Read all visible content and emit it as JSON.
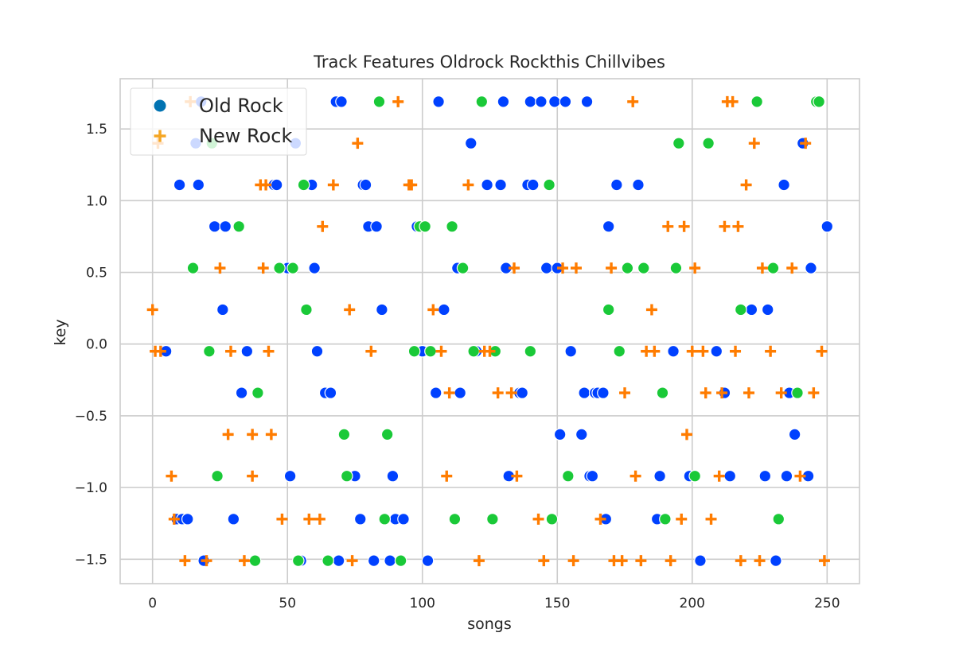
{
  "chart_data": {
    "type": "scatter",
    "title": "Track Features Oldrock Rockthis Chillvibes",
    "xlabel": "songs",
    "ylabel": "key",
    "xlim": [
      -12,
      262
    ],
    "ylim": [
      -1.67,
      1.85
    ],
    "xticks": [
      0,
      50,
      100,
      150,
      200,
      250
    ],
    "yticks": [
      -1.5,
      -1.0,
      -0.5,
      0.0,
      0.5,
      1.0,
      1.5
    ],
    "xtick_labels": [
      "0",
      "50",
      "100",
      "150",
      "200",
      "250"
    ],
    "ytick_labels": [
      "−1.5",
      "−1.0",
      "−0.5",
      "0.0",
      "0.5",
      "1.0",
      "1.5"
    ],
    "grid": true,
    "legend_position": "top-left",
    "legend": [
      {
        "name": "Old Rock",
        "marker": "circle",
        "color": "#0173b2"
      },
      {
        "name": "New Rock",
        "marker": "plus",
        "color": "#f5a623"
      }
    ],
    "series": [
      {
        "name": "Old Rock",
        "marker": "circle",
        "color": "#0041ff",
        "points": [
          [
            5,
            -0.05
          ],
          [
            10,
            1.11
          ],
          [
            9,
            -1.22
          ],
          [
            11,
            -1.22
          ],
          [
            13,
            -1.22
          ],
          [
            16,
            1.4
          ],
          [
            17,
            1.11
          ],
          [
            18,
            1.69
          ],
          [
            19,
            -1.51
          ],
          [
            23,
            0.82
          ],
          [
            26,
            0.24
          ],
          [
            27,
            0.82
          ],
          [
            30,
            -1.22
          ],
          [
            33,
            -0.34
          ],
          [
            35,
            -0.05
          ],
          [
            45,
            1.11
          ],
          [
            46,
            1.11
          ],
          [
            50,
            0.53
          ],
          [
            51,
            -0.92
          ],
          [
            53,
            1.4
          ],
          [
            55,
            -1.51
          ],
          [
            59,
            1.11
          ],
          [
            60,
            0.53
          ],
          [
            61,
            -0.05
          ],
          [
            64,
            -0.34
          ],
          [
            66,
            -0.34
          ],
          [
            68,
            1.69
          ],
          [
            69,
            -1.51
          ],
          [
            70,
            1.69
          ],
          [
            75,
            -0.92
          ],
          [
            77,
            -1.22
          ],
          [
            78,
            1.11
          ],
          [
            79,
            1.11
          ],
          [
            80,
            0.82
          ],
          [
            82,
            -1.51
          ],
          [
            83,
            0.82
          ],
          [
            85,
            0.24
          ],
          [
            88,
            -1.51
          ],
          [
            89,
            -0.92
          ],
          [
            90,
            -1.22
          ],
          [
            93,
            -1.22
          ],
          [
            98,
            0.82
          ],
          [
            100,
            -0.05
          ],
          [
            102,
            -1.51
          ],
          [
            105,
            -0.34
          ],
          [
            106,
            1.69
          ],
          [
            108,
            0.24
          ],
          [
            113,
            0.53
          ],
          [
            114,
            -0.34
          ],
          [
            118,
            1.4
          ],
          [
            120,
            -0.05
          ],
          [
            124,
            1.11
          ],
          [
            129,
            1.11
          ],
          [
            130,
            1.69
          ],
          [
            131,
            0.53
          ],
          [
            132,
            -0.92
          ],
          [
            136,
            -0.34
          ],
          [
            137,
            -0.34
          ],
          [
            139,
            1.11
          ],
          [
            140,
            1.69
          ],
          [
            141,
            1.11
          ],
          [
            144,
            1.69
          ],
          [
            146,
            0.53
          ],
          [
            149,
            1.69
          ],
          [
            150,
            0.53
          ],
          [
            151,
            -0.63
          ],
          [
            153,
            1.69
          ],
          [
            155,
            -0.05
          ],
          [
            159,
            -0.63
          ],
          [
            160,
            -0.34
          ],
          [
            161,
            1.69
          ],
          [
            162,
            -0.92
          ],
          [
            163,
            -0.92
          ],
          [
            164,
            -0.34
          ],
          [
            165,
            -0.34
          ],
          [
            167,
            -0.34
          ],
          [
            168,
            -1.22
          ],
          [
            169,
            0.82
          ],
          [
            172,
            1.11
          ],
          [
            180,
            1.11
          ],
          [
            187,
            -1.22
          ],
          [
            188,
            -0.92
          ],
          [
            193,
            -0.05
          ],
          [
            199,
            -0.92
          ],
          [
            203,
            -1.51
          ],
          [
            209,
            -0.05
          ],
          [
            212,
            -0.34
          ],
          [
            214,
            -0.92
          ],
          [
            222,
            0.24
          ],
          [
            227,
            -0.92
          ],
          [
            228,
            0.24
          ],
          [
            231,
            -1.51
          ],
          [
            234,
            1.11
          ],
          [
            235,
            -0.92
          ],
          [
            236,
            -0.34
          ],
          [
            238,
            -0.63
          ],
          [
            241,
            1.4
          ],
          [
            243,
            -0.92
          ],
          [
            244,
            0.53
          ],
          [
            250,
            0.82
          ]
        ]
      },
      {
        "name": "Chill Vibes",
        "marker": "circle",
        "color": "#1ac938",
        "points": [
          [
            15,
            0.53
          ],
          [
            21,
            -0.05
          ],
          [
            22,
            1.4
          ],
          [
            24,
            -0.92
          ],
          [
            32,
            0.82
          ],
          [
            38,
            -1.51
          ],
          [
            39,
            -0.34
          ],
          [
            47,
            0.53
          ],
          [
            52,
            0.53
          ],
          [
            54,
            -1.51
          ],
          [
            56,
            1.11
          ],
          [
            57,
            0.24
          ],
          [
            65,
            -1.51
          ],
          [
            71,
            -0.63
          ],
          [
            72,
            -0.92
          ],
          [
            84,
            1.69
          ],
          [
            86,
            -1.22
          ],
          [
            87,
            -0.63
          ],
          [
            92,
            -1.51
          ],
          [
            97,
            -0.05
          ],
          [
            99,
            0.82
          ],
          [
            101,
            0.82
          ],
          [
            103,
            -0.05
          ],
          [
            111,
            0.82
          ],
          [
            112,
            -1.22
          ],
          [
            115,
            0.53
          ],
          [
            119,
            -0.05
          ],
          [
            122,
            1.69
          ],
          [
            126,
            -1.22
          ],
          [
            127,
            -0.05
          ],
          [
            140,
            -0.05
          ],
          [
            147,
            1.11
          ],
          [
            148,
            -1.22
          ],
          [
            154,
            -0.92
          ],
          [
            169,
            0.24
          ],
          [
            173,
            -0.05
          ],
          [
            176,
            0.53
          ],
          [
            182,
            0.53
          ],
          [
            189,
            -0.34
          ],
          [
            190,
            -1.22
          ],
          [
            194,
            0.53
          ],
          [
            195,
            1.4
          ],
          [
            201,
            -0.92
          ],
          [
            206,
            1.4
          ],
          [
            218,
            0.24
          ],
          [
            224,
            1.69
          ],
          [
            230,
            0.53
          ],
          [
            232,
            -1.22
          ],
          [
            239,
            -0.34
          ],
          [
            246,
            1.69
          ],
          [
            247,
            1.69
          ]
        ]
      },
      {
        "name": "New Rock",
        "marker": "plus",
        "color": "#ff7c00",
        "points": [
          [
            0,
            0.24
          ],
          [
            1,
            -0.05
          ],
          [
            2,
            1.4
          ],
          [
            3,
            -0.05
          ],
          [
            7,
            -0.92
          ],
          [
            8,
            -1.22
          ],
          [
            12,
            -1.51
          ],
          [
            14,
            1.69
          ],
          [
            20,
            -1.51
          ],
          [
            25,
            0.53
          ],
          [
            28,
            -0.63
          ],
          [
            29,
            -0.05
          ],
          [
            34,
            -1.51
          ],
          [
            37,
            -0.63
          ],
          [
            37,
            -0.92
          ],
          [
            40,
            1.11
          ],
          [
            41,
            0.53
          ],
          [
            42,
            1.11
          ],
          [
            43,
            -0.05
          ],
          [
            44,
            -0.63
          ],
          [
            48,
            -1.22
          ],
          [
            58,
            -1.22
          ],
          [
            62,
            -1.22
          ],
          [
            63,
            0.82
          ],
          [
            67,
            1.11
          ],
          [
            73,
            0.24
          ],
          [
            74,
            -1.51
          ],
          [
            76,
            1.4
          ],
          [
            81,
            -0.05
          ],
          [
            91,
            1.69
          ],
          [
            95,
            1.11
          ],
          [
            96,
            1.11
          ],
          [
            104,
            0.24
          ],
          [
            107,
            -0.05
          ],
          [
            109,
            -0.92
          ],
          [
            110,
            -0.34
          ],
          [
            117,
            1.11
          ],
          [
            121,
            -1.51
          ],
          [
            123,
            -0.05
          ],
          [
            125,
            -0.05
          ],
          [
            128,
            -0.34
          ],
          [
            133,
            -0.34
          ],
          [
            134,
            0.53
          ],
          [
            135,
            -0.92
          ],
          [
            143,
            -1.22
          ],
          [
            145,
            -1.51
          ],
          [
            152,
            0.53
          ],
          [
            156,
            -1.51
          ],
          [
            157,
            0.53
          ],
          [
            166,
            -1.22
          ],
          [
            170,
            0.53
          ],
          [
            171,
            -1.51
          ],
          [
            174,
            -1.51
          ],
          [
            175,
            -0.34
          ],
          [
            178,
            1.69
          ],
          [
            179,
            -0.92
          ],
          [
            181,
            -1.51
          ],
          [
            183,
            -0.05
          ],
          [
            185,
            0.24
          ],
          [
            186,
            -0.05
          ],
          [
            191,
            0.82
          ],
          [
            192,
            -1.51
          ],
          [
            196,
            -1.22
          ],
          [
            197,
            0.82
          ],
          [
            198,
            -0.63
          ],
          [
            200,
            -0.05
          ],
          [
            201,
            0.53
          ],
          [
            204,
            -0.05
          ],
          [
            205,
            -0.34
          ],
          [
            207,
            -1.22
          ],
          [
            210,
            -0.92
          ],
          [
            211,
            -0.34
          ],
          [
            212,
            0.82
          ],
          [
            213,
            1.69
          ],
          [
            215,
            1.69
          ],
          [
            216,
            -0.05
          ],
          [
            217,
            0.82
          ],
          [
            218,
            -1.51
          ],
          [
            220,
            1.11
          ],
          [
            221,
            -0.34
          ],
          [
            223,
            1.4
          ],
          [
            225,
            -1.51
          ],
          [
            226,
            0.53
          ],
          [
            229,
            -0.05
          ],
          [
            233,
            -0.34
          ],
          [
            237,
            0.53
          ],
          [
            240,
            -0.92
          ],
          [
            242,
            1.4
          ],
          [
            245,
            -0.34
          ],
          [
            248,
            -0.05
          ],
          [
            249,
            -1.51
          ]
        ]
      }
    ]
  }
}
